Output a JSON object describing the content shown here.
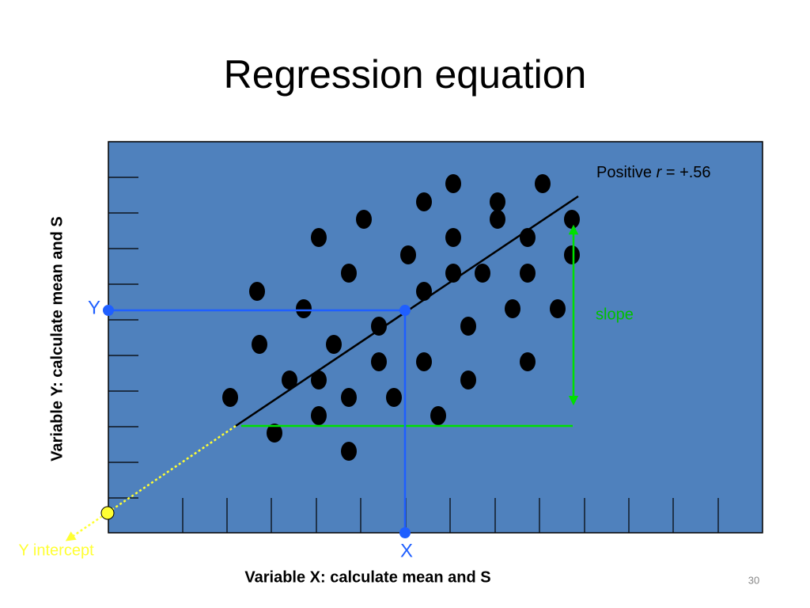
{
  "header": {
    "title": "Regression equation"
  },
  "annotation": {
    "prefix": "Positive",
    "symbol": "r",
    "suffix": "= +.56"
  },
  "labels": {
    "slope": "slope",
    "y_point": "Y",
    "x_point": "X",
    "y_intercept": "Y intercept"
  },
  "axes": {
    "y_label": "Variable Y: calculate mean and S",
    "x_label": "Variable X: calculate mean and S"
  },
  "footer": {
    "page_number": "30"
  }
}
